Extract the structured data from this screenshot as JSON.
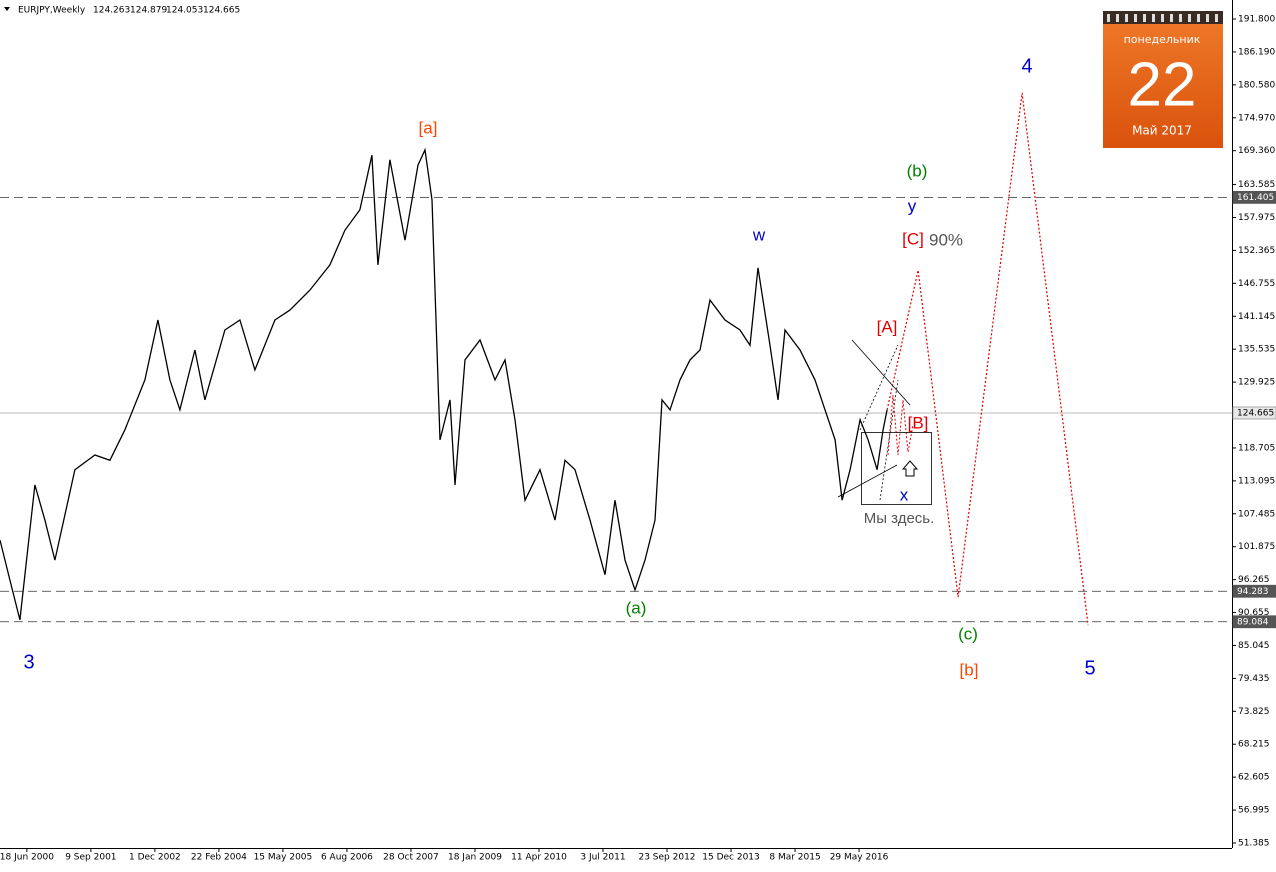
{
  "chart_data": {
    "type": "line",
    "title": "EURJPY,Weekly",
    "quote": {
      "open": 124.263,
      "high": 124.879,
      "low": 124.053,
      "close": 124.665
    },
    "xlim": [
      "1999-12-13",
      "2023-07-22"
    ],
    "xticks": [
      {
        "value": "2000-06-18",
        "label": "18 Jun 2000"
      },
      {
        "value": "2001-09-09",
        "label": "9 Sep 2001"
      },
      {
        "value": "2002-12-01",
        "label": "1 Dec 2002"
      },
      {
        "value": "2004-02-22",
        "label": "22 Feb 2004"
      },
      {
        "value": "2005-05-15",
        "label": "15 May 2005"
      },
      {
        "value": "2006-08-06",
        "label": "6 Aug 2006"
      },
      {
        "value": "2007-10-28",
        "label": "28 Oct 2007"
      },
      {
        "value": "2009-01-18",
        "label": "18 Jan 2009"
      },
      {
        "value": "2010-04-11",
        "label": "11 Apr 2010"
      },
      {
        "value": "2011-07-03",
        "label": "3 Jul 2011"
      },
      {
        "value": "2012-09-23",
        "label": "23 Sep 2012"
      },
      {
        "value": "2013-12-15",
        "label": "15 Dec 2013"
      },
      {
        "value": "2015-03-08",
        "label": "8 Mar 2015"
      },
      {
        "value": "2016-05-29",
        "label": "29 May 2016"
      }
    ],
    "ylim": [
      50.53,
      195.04
    ],
    "yticks": [
      {
        "value": 191.8,
        "label": "191.800"
      },
      {
        "value": 186.19,
        "label": "186.190"
      },
      {
        "value": 180.58,
        "label": "180.580"
      },
      {
        "value": 174.97,
        "label": "174.970"
      },
      {
        "value": 169.36,
        "label": "169.360"
      },
      163.585,
      157.975,
      152.365,
      146.755,
      141.145,
      135.535,
      129.925,
      118.705,
      113.095,
      107.485,
      101.875,
      96.265,
      90.655,
      85.045,
      79.435,
      73.825,
      68.215,
      62.605,
      56.995,
      51.385
    ],
    "levels": [
      {
        "value": 161.405,
        "style": "dashed"
      },
      {
        "value": 124.665,
        "style": "solid"
      },
      {
        "value": 94.283,
        "style": "dashed"
      },
      {
        "value": 89.084,
        "style": "dashed"
      }
    ],
    "series": [
      {
        "color": "#000000",
        "style": "solid",
        "x": [
          "1999-12-13",
          "2000-02-20",
          "2000-04-30",
          "2000-08-13",
          "2000-10-22",
          "2000-12-31",
          "2001-05-20",
          "2001-10-07",
          "2002-01-20",
          "2002-05-05",
          "2002-09-22",
          "2002-12-22",
          "2003-03-16",
          "2003-05-25",
          "2003-09-07",
          "2003-11-16",
          "2004-04-04",
          "2004-07-18",
          "2004-10-31",
          "2005-03-20",
          "2005-07-03",
          "2005-11-20",
          "2006-04-09",
          "2006-07-23",
          "2006-11-05",
          "2007-01-28",
          "2007-03-11",
          "2007-06-03",
          "2007-09-16",
          "2007-12-16",
          "2008-02-03",
          "2008-03-23",
          "2008-05-18",
          "2008-07-27",
          "2008-08-31",
          "2008-11-09",
          "2009-02-22",
          "2009-06-07",
          "2009-08-16",
          "2009-10-25",
          "2010-01-03",
          "2010-04-18",
          "2010-08-01",
          "2010-10-10",
          "2010-12-19",
          "2011-04-03",
          "2011-07-17",
          "2011-09-25",
          "2011-12-04",
          "2012-02-12",
          "2012-04-22",
          "2012-07-01",
          "2012-08-19",
          "2012-10-14",
          "2012-12-23",
          "2013-03-03",
          "2013-05-12",
          "2013-07-21",
          "2013-11-03",
          "2014-02-16",
          "2014-04-27",
          "2014-06-22",
          "2014-09-14",
          "2014-11-09",
          "2014-12-28",
          "2015-04-12",
          "2015-07-26",
          "2015-10-04",
          "2015-12-13",
          "2016-01-31",
          "2016-03-27",
          "2016-06-05",
          "2016-07-31",
          "2016-10-02",
          "2016-11-13",
          "2016-12-11"
        ],
        "values": [
          103.0,
          96.2,
          89.4,
          112.4,
          106.4,
          99.6,
          115.0,
          117.5,
          116.6,
          121.8,
          130.3,
          140.5,
          130.3,
          125.2,
          135.4,
          126.9,
          138.8,
          140.5,
          132.0,
          140.5,
          142.2,
          145.6,
          149.9,
          155.8,
          159.3,
          168.6,
          149.9,
          167.8,
          154.1,
          166.9,
          169.5,
          161.0,
          120.1,
          126.9,
          112.4,
          133.7,
          137.1,
          130.3,
          133.7,
          123.5,
          109.8,
          115.0,
          106.4,
          116.6,
          115.0,
          106.4,
          97.1,
          109.8,
          99.6,
          94.5,
          99.6,
          106.4,
          126.9,
          125.2,
          130.3,
          133.7,
          135.4,
          143.9,
          140.5,
          138.8,
          136.2,
          149.4,
          136.2,
          126.9,
          138.8,
          135.4,
          130.3,
          125.2,
          120.1,
          109.8,
          115.0,
          123.5,
          120.1,
          115.0,
          121.8,
          125.2
        ]
      },
      {
        "color": "#e00000",
        "style": "dotted",
        "x": [
          "2016-12-11",
          "2017-07-16",
          "2018-04-22",
          "2019-07-14",
          "2020-10-18"
        ],
        "values": [
          125.2,
          149.0,
          93.3,
          179.2,
          88.5
        ]
      }
    ],
    "annotations": [
      {
        "text": "[a]",
        "color": "#ff4500"
      },
      {
        "text": "(b)",
        "color": "#008000"
      },
      {
        "text": "y",
        "color": "#0000cc"
      },
      {
        "text": "w",
        "color": "#0000cc"
      },
      {
        "text": "[C]",
        "color": "#e00000"
      },
      {
        "text": "90%",
        "color": "#555555"
      },
      {
        "text": "[A]",
        "color": "#e00000"
      },
      {
        "text": "[B]",
        "color": "#e00000"
      },
      {
        "text": "x",
        "color": "#0000cc"
      },
      {
        "text": "Мы здесь.",
        "color": "#555555"
      },
      {
        "text": "(a)",
        "color": "#008000"
      },
      {
        "text": "(c)",
        "color": "#008000"
      },
      {
        "text": "[b]",
        "color": "#ff4500"
      },
      {
        "text": "4",
        "color": "#0000cc"
      },
      {
        "text": "5",
        "color": "#0000cc"
      },
      {
        "text": "3",
        "color": "#0000cc"
      }
    ],
    "calendar": {
      "weekday": "понедельник",
      "day": 22,
      "month": "Май 2017"
    }
  }
}
